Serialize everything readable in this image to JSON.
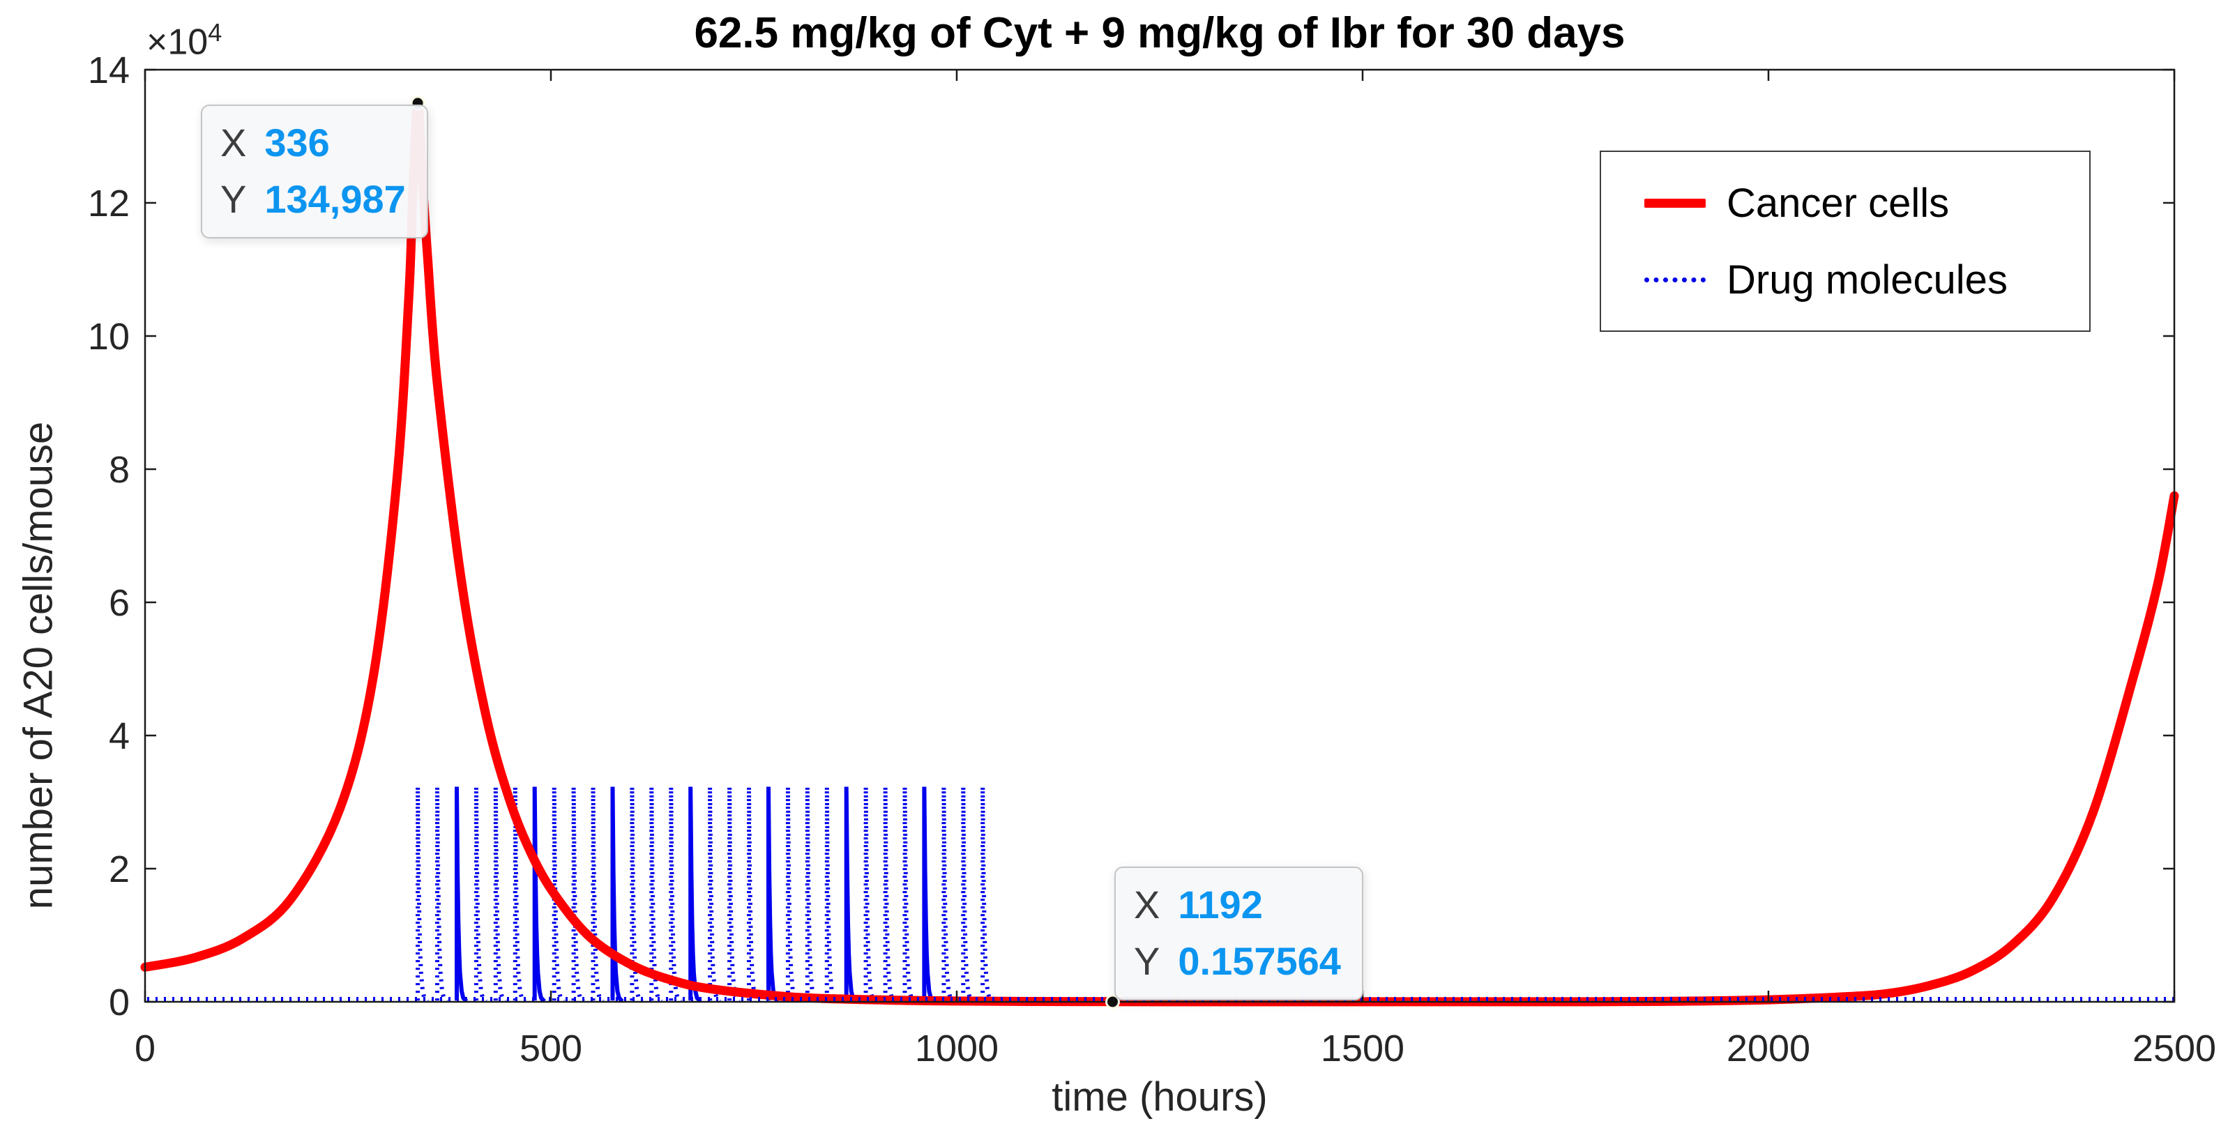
{
  "figure": {
    "axis_multiplier_base": "×10",
    "axis_multiplier_exp": "4"
  },
  "chart_data": {
    "type": "line",
    "title": "62.5 mg/kg of Cyt + 9 mg/kg of Ibr for 30 days",
    "xlabel": "time (hours)",
    "ylabel": "number of A20 cells/mouse",
    "y_multiplier": "×10^4",
    "xlim": [
      0,
      2500
    ],
    "ylim": [
      0,
      14
    ],
    "xticks": [
      0,
      500,
      1000,
      1500,
      2000,
      2500
    ],
    "yticks": [
      0,
      2,
      4,
      6,
      8,
      10,
      12,
      14
    ],
    "grid": false,
    "legend_position": "northeast-inside",
    "axis_color": "#1a1a1a",
    "tick_label_color": "#262626",
    "series": [
      {
        "name": "Cancer cells",
        "color": "#ff0000",
        "line_style": "solid",
        "line_width": 13,
        "points_t_hours_v_1e4": [
          [
            0,
            0.52
          ],
          [
            60,
            0.66
          ],
          [
            120,
            0.95
          ],
          [
            180,
            1.55
          ],
          [
            240,
            2.9
          ],
          [
            280,
            4.8
          ],
          [
            310,
            7.8
          ],
          [
            325,
            10.6
          ],
          [
            330,
            12.2
          ],
          [
            336,
            13.4987
          ],
          [
            342,
            12.3
          ],
          [
            348,
            11.2
          ],
          [
            360,
            9.3
          ],
          [
            390,
            6.3
          ],
          [
            420,
            4.3
          ],
          [
            450,
            3.0
          ],
          [
            480,
            2.12
          ],
          [
            510,
            1.52
          ],
          [
            550,
            0.95
          ],
          [
            600,
            0.55
          ],
          [
            650,
            0.32
          ],
          [
            700,
            0.19
          ],
          [
            800,
            0.07
          ],
          [
            900,
            0.03
          ],
          [
            1000,
            0.012
          ],
          [
            1100,
            0.005
          ],
          [
            1200,
            0.002
          ],
          [
            1400,
            0.001
          ],
          [
            1600,
            0.001
          ],
          [
            1800,
            0.002
          ],
          [
            1900,
            0.01
          ],
          [
            2000,
            0.03
          ],
          [
            2100,
            0.08
          ],
          [
            2150,
            0.13
          ],
          [
            2200,
            0.25
          ],
          [
            2250,
            0.46
          ],
          [
            2300,
            0.85
          ],
          [
            2350,
            1.55
          ],
          [
            2400,
            2.85
          ],
          [
            2450,
            4.9
          ],
          [
            2480,
            6.3
          ],
          [
            2500,
            7.6
          ]
        ]
      },
      {
        "name": "Drug molecules",
        "color": "#0000ee",
        "line_style": "dotted",
        "line_width": 6,
        "baseline_v_1e4": 0,
        "doses": {
          "start_hour": 336,
          "interval_hours": 24,
          "count": 30,
          "peak_v_1e4": 3.23,
          "decay_tau_hours": 2.0
        }
      }
    ],
    "datatips": [
      {
        "x_label": "X",
        "x_value": "336",
        "y_label": "Y",
        "y_value": "134,987",
        "point_units": [
          336,
          13.4987
        ]
      },
      {
        "x_label": "X",
        "x_value": "1192",
        "y_label": "Y",
        "y_value": "0.157564",
        "point_units": [
          1192,
          1.58e-05
        ]
      }
    ]
  }
}
